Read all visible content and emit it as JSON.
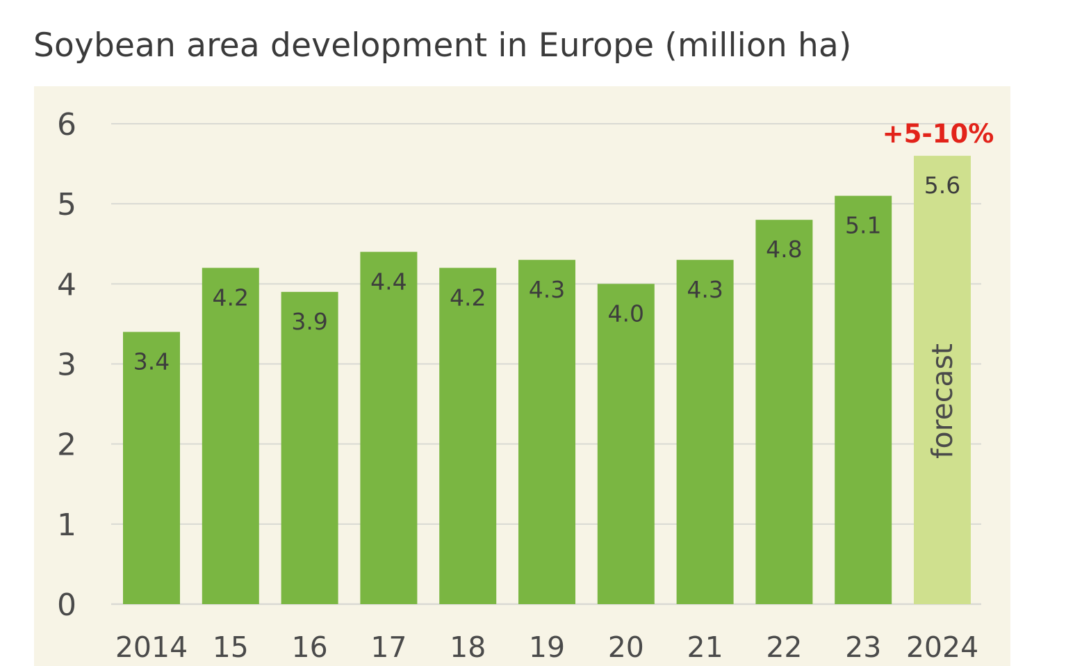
{
  "chart_data": {
    "type": "bar",
    "title": "Soybean area development in Europe (million ha)",
    "categories": [
      "2014",
      "15",
      "16",
      "17",
      "18",
      "19",
      "20",
      "21",
      "22",
      "23",
      "2024"
    ],
    "values": [
      3.4,
      4.2,
      3.9,
      4.4,
      4.2,
      4.3,
      4.0,
      4.3,
      4.8,
      5.1,
      5.6
    ],
    "value_labels": [
      "3.4",
      "4.2",
      "3.9",
      "4.4",
      "4.2",
      "4.3",
      "4.0",
      "4.3",
      "4.8",
      "5.1",
      "5.6"
    ],
    "ylim": [
      0,
      6
    ],
    "yticks": [
      "0",
      "1",
      "2",
      "3",
      "4",
      "5",
      "6"
    ],
    "grid": true,
    "forecast_index": 10,
    "forecast_label": "forecast",
    "forecast_note": "+5-10%",
    "colors": {
      "bar": "#7ab642",
      "forecast_bar": "#cfe08e",
      "note": "#e2231a",
      "panel": "#f7f4e6",
      "grid": "#d9d9d3"
    }
  }
}
